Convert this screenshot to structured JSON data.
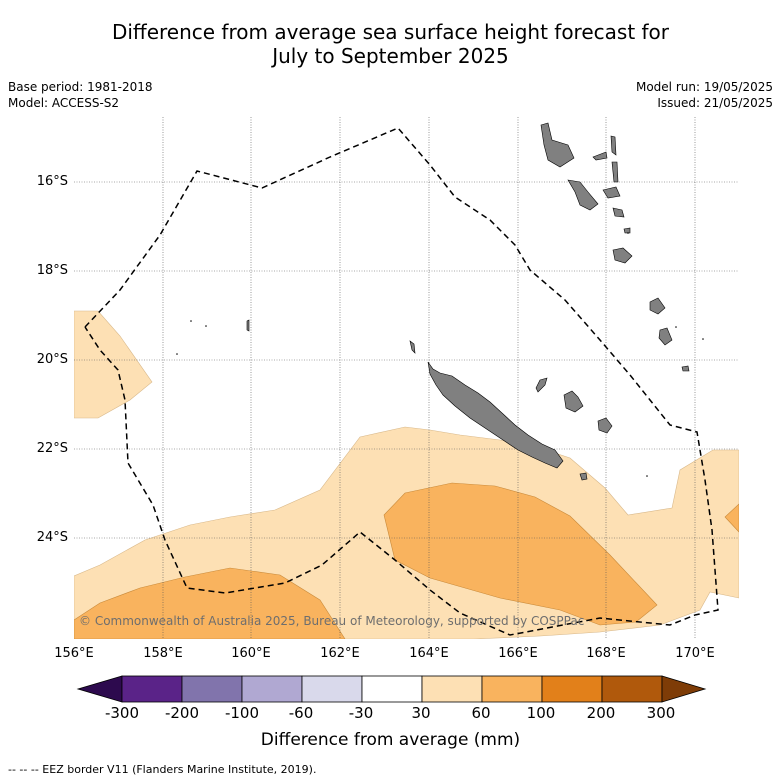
{
  "title": {
    "line1": "Difference from average sea surface height forecast for",
    "line2": "July to September 2025"
  },
  "meta_left": {
    "base_period": "Base period: 1981-2018",
    "model": "Model: ACCESS-S2"
  },
  "meta_right": {
    "model_run": "Model run: 19/05/2025",
    "issued": "Issued: 21/05/2025"
  },
  "map": {
    "lat_labels": [
      "16°S",
      "18°S",
      "20°S",
      "22°S",
      "24°S"
    ],
    "lon_labels": [
      "156°E",
      "158°E",
      "160°E",
      "162°E",
      "164°E",
      "166°E",
      "168°E",
      "170°E"
    ],
    "copyright": "© Commonwealth of Australia 2025, Bureau of Meteorology, supported by COSPPac",
    "colors": {
      "ocean": "#ffffff",
      "land": "#808080",
      "fill_30_60": "#fde0b4",
      "fill_60_100": "#f9b35e"
    }
  },
  "colorbar": {
    "ticks": [
      "-300",
      "-200",
      "-100",
      "-60",
      "-30",
      "30",
      "60",
      "100",
      "200",
      "300"
    ],
    "colors": [
      "#2d0a4e",
      "#5a2388",
      "#8174ac",
      "#b0a8d2",
      "#d9d9eb",
      "#ffffff",
      "#fde0b4",
      "#f9b35e",
      "#e2801a",
      "#b0590c",
      "#7e3c07"
    ],
    "label": "Difference from average (mm)"
  },
  "footnote": "--  --  -- EEZ border V11 (Flanders Marine Institute, 2019)."
}
